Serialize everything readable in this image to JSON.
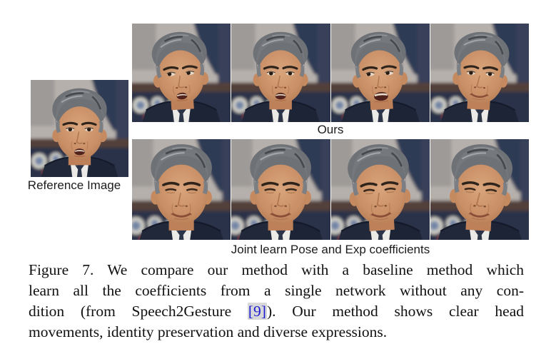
{
  "figure": {
    "reference": {
      "label": "Reference Image",
      "name": "reference-image",
      "pose": {
        "eyes": "open",
        "mouth": "talk",
        "tilt": "0",
        "gaze": "c",
        "zoom": false
      }
    },
    "rows": [
      {
        "name": "ours-row",
        "label": "Ours",
        "images": [
          {
            "name": "ours-image-1",
            "pose": {
              "eyes": "open",
              "mouth": "talk",
              "tilt": "l1",
              "gaze": "l",
              "zoom": false
            }
          },
          {
            "name": "ours-image-2",
            "pose": {
              "eyes": "open",
              "mouth": "talk",
              "tilt": "0",
              "gaze": "c",
              "zoom": false
            }
          },
          {
            "name": "ours-image-3",
            "pose": {
              "eyes": "open",
              "mouth": "open",
              "tilt": "l1",
              "gaze": "l",
              "zoom": false
            }
          },
          {
            "name": "ours-image-4",
            "pose": {
              "eyes": "open",
              "mouth": "smile",
              "tilt": "r1",
              "gaze": "c",
              "zoom": false
            }
          }
        ]
      },
      {
        "name": "joint-row",
        "label": "Joint learn Pose and Exp coefficients",
        "images": [
          {
            "name": "joint-image-1",
            "pose": {
              "eyes": "narrow",
              "mouth": "smile",
              "tilt": "0",
              "gaze": "c",
              "zoom": true
            }
          },
          {
            "name": "joint-image-2",
            "pose": {
              "eyes": "narrow",
              "mouth": "smile",
              "tilt": "0",
              "gaze": "c",
              "zoom": true
            }
          },
          {
            "name": "joint-image-3",
            "pose": {
              "eyes": "narrow",
              "mouth": "smile",
              "tilt": "l1",
              "gaze": "c",
              "zoom": true
            }
          },
          {
            "name": "joint-image-4",
            "pose": {
              "eyes": "narrow",
              "mouth": "smile",
              "tilt": "r1",
              "gaze": "c",
              "zoom": true
            }
          }
        ]
      }
    ]
  },
  "caption": {
    "figure_label": "Figure 7.",
    "line1": "Figure 7. We compare our method with a baseline method which",
    "line2": "learn all the coefficients from a single network without any con-",
    "line3_pre": "dition (from Speech2Gesture ",
    "line3_cite": "[9]",
    "line3_post": "). Our method shows clear head",
    "line4": "movements, identity preservation and diverse expressions."
  },
  "colors": {
    "citation_text": "#1b1bd4",
    "citation_background": "#d8d8d8",
    "caption_text": "#111111",
    "label_text": "#1c1c1c",
    "page_background": "#ffffff"
  }
}
